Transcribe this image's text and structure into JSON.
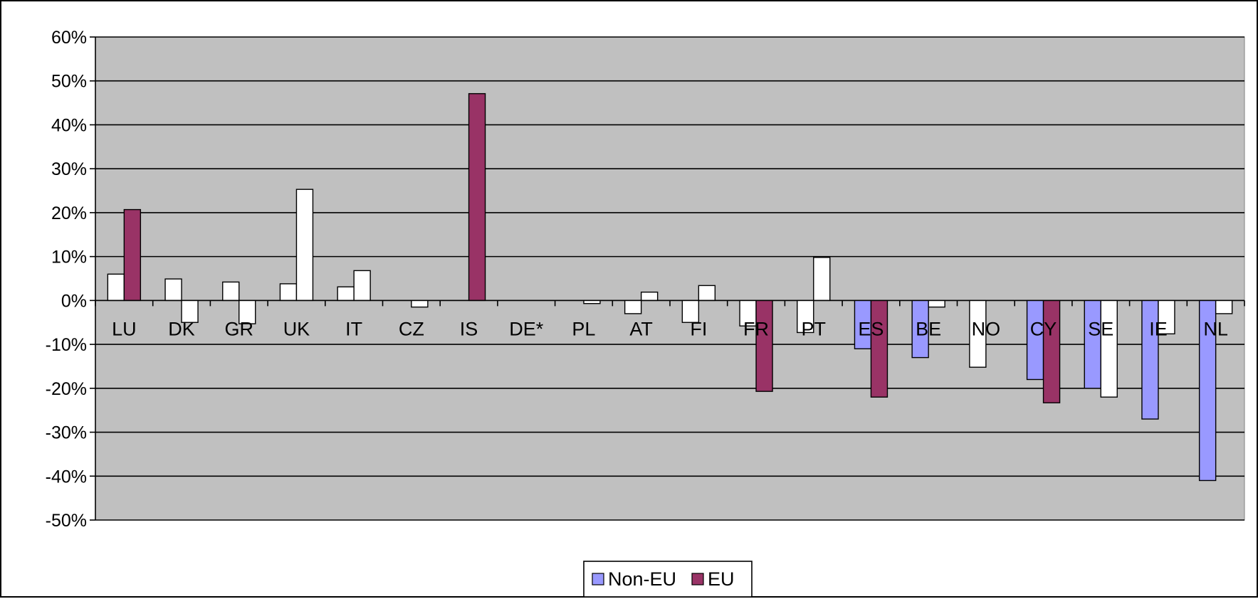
{
  "chart_data": {
    "type": "bar",
    "categories": [
      "LU",
      "DK",
      "GR",
      "UK",
      "IT",
      "CZ",
      "IS",
      "DE*",
      "PL",
      "AT",
      "FI",
      "FR",
      "PT",
      "ES",
      "BE",
      "NO",
      "CY",
      "SE",
      "IE",
      "NL"
    ],
    "series": [
      {
        "name": "Non-EU",
        "color": "#9999ff",
        "values": [
          6.0,
          4.9,
          4.2,
          3.8,
          3.1,
          null,
          null,
          null,
          null,
          -3.0,
          -5.0,
          -5.8,
          -7.3,
          -11.0,
          -13.0,
          -15.2,
          -18.0,
          -20.0,
          -27.0,
          -41.0
        ]
      },
      {
        "name": "EU",
        "color": "#993366",
        "values": [
          20.7,
          -5.0,
          -5.3,
          25.3,
          6.8,
          -1.5,
          47.1,
          null,
          -0.7,
          1.9,
          3.4,
          -20.7,
          9.8,
          -22.0,
          -1.5,
          null,
          -23.3,
          -22.0,
          -7.6,
          -3.0
        ]
      }
    ],
    "highlight": {
      "description_color_white": "#ffffff",
      "non_eu_colored": [
        "ES",
        "BE",
        "CY",
        "SE",
        "IE",
        "NL"
      ],
      "eu_colored": [
        "LU",
        "IS",
        "FR",
        "ES",
        "CY"
      ]
    },
    "ylim": [
      -50,
      60
    ],
    "yticks": [
      60,
      50,
      40,
      30,
      20,
      10,
      0,
      -10,
      -20,
      -30,
      -40,
      -50
    ],
    "ytick_format": "%",
    "plot_background": "#c0c0c0",
    "grid": true,
    "legend": {
      "placement": "bottom-center",
      "entries": [
        "Non-EU",
        "EU"
      ]
    },
    "title": "",
    "xlabel": "",
    "ylabel": ""
  }
}
